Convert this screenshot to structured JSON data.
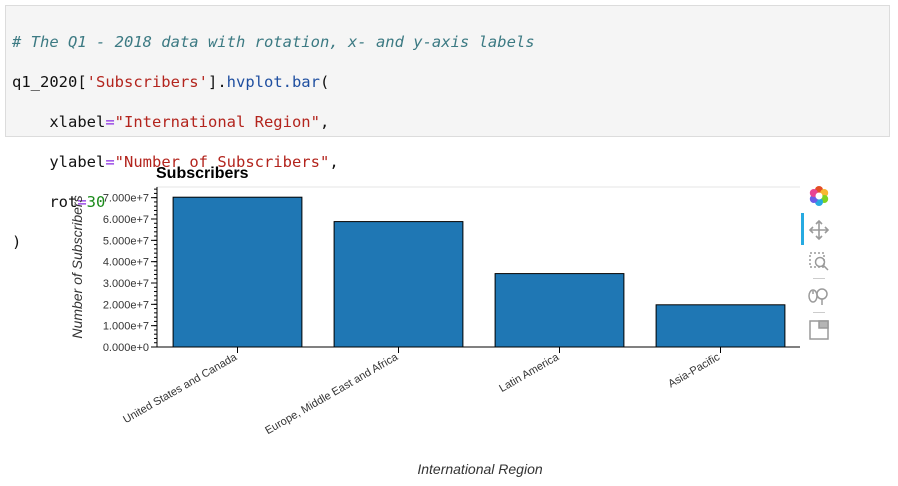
{
  "code": {
    "comment": "# The Q1 - 2018 data with rotation, x- and y-axis labels",
    "line2_var": "q1_2020[",
    "line2_key": "'Subscribers'",
    "line2_rest": "].",
    "line2_method": "hvplot.bar",
    "line2_paren": "(",
    "xlabel_key": "xlabel",
    "eq": "=",
    "xlabel_val": "\"International Region\"",
    "comma": ",",
    "ylabel_key": "ylabel",
    "ylabel_val": "\"Number of Subscribers\"",
    "rot_key": "rot",
    "rot_val": "30",
    "close": ")"
  },
  "chart_data": {
    "type": "bar",
    "title": "Subscribers",
    "xlabel": "International Region",
    "ylabel": "Number of Subscribers",
    "categories": [
      "United States and Canada",
      "Europe, Middle East and Africa",
      "Latin America",
      "Asia-Pacific"
    ],
    "values": [
      70200000,
      58800000,
      34400000,
      19800000
    ],
    "ylim": [
      0,
      75000000
    ],
    "yticks": [
      0,
      10000000,
      20000000,
      30000000,
      40000000,
      50000000,
      60000000,
      70000000
    ],
    "ytick_labels": [
      "0.000e+0",
      "1.000e+7",
      "2.000e+7",
      "3.000e+7",
      "4.000e+7",
      "5.000e+7",
      "6.000e+7",
      "7.000e+7"
    ],
    "bar_color": "#1f77b4",
    "xtick_rotation": 30,
    "grid": false
  },
  "toolbar": {
    "tools": [
      "bokeh-logo-icon",
      "pan-icon",
      "box-zoom-icon",
      "wheel-zoom-icon",
      "reset-icon"
    ]
  }
}
